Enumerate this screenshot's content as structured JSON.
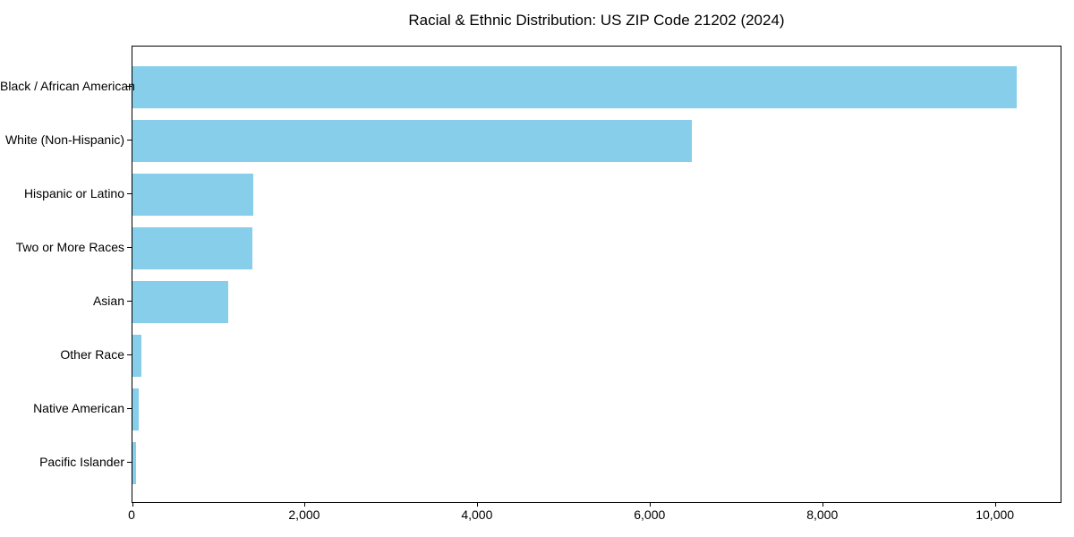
{
  "title": "Racial & Ethnic Distribution: US ZIP Code 21202 (2024)",
  "chart_data": {
    "type": "bar",
    "orientation": "horizontal",
    "title": "Racial & Ethnic Distribution: US ZIP Code 21202 (2024)",
    "categories": [
      "Black / African American",
      "White (Non-Hispanic)",
      "Hispanic or Latino",
      "Two or More Races",
      "Asian",
      "Other Race",
      "Native American",
      "Pacific Islander"
    ],
    "values": [
      10240,
      6480,
      1400,
      1390,
      1110,
      100,
      70,
      40
    ],
    "xlabel": "",
    "ylabel": "",
    "xlim": [
      0,
      10750
    ],
    "xticks": [
      0,
      2000,
      4000,
      6000,
      8000,
      10000
    ],
    "xtick_labels": [
      "0",
      "2,000",
      "4,000",
      "6,000",
      "8,000",
      "10,000"
    ],
    "bar_color": "#87CEEB",
    "text_color": "#000000",
    "grid": false,
    "legend": null
  }
}
